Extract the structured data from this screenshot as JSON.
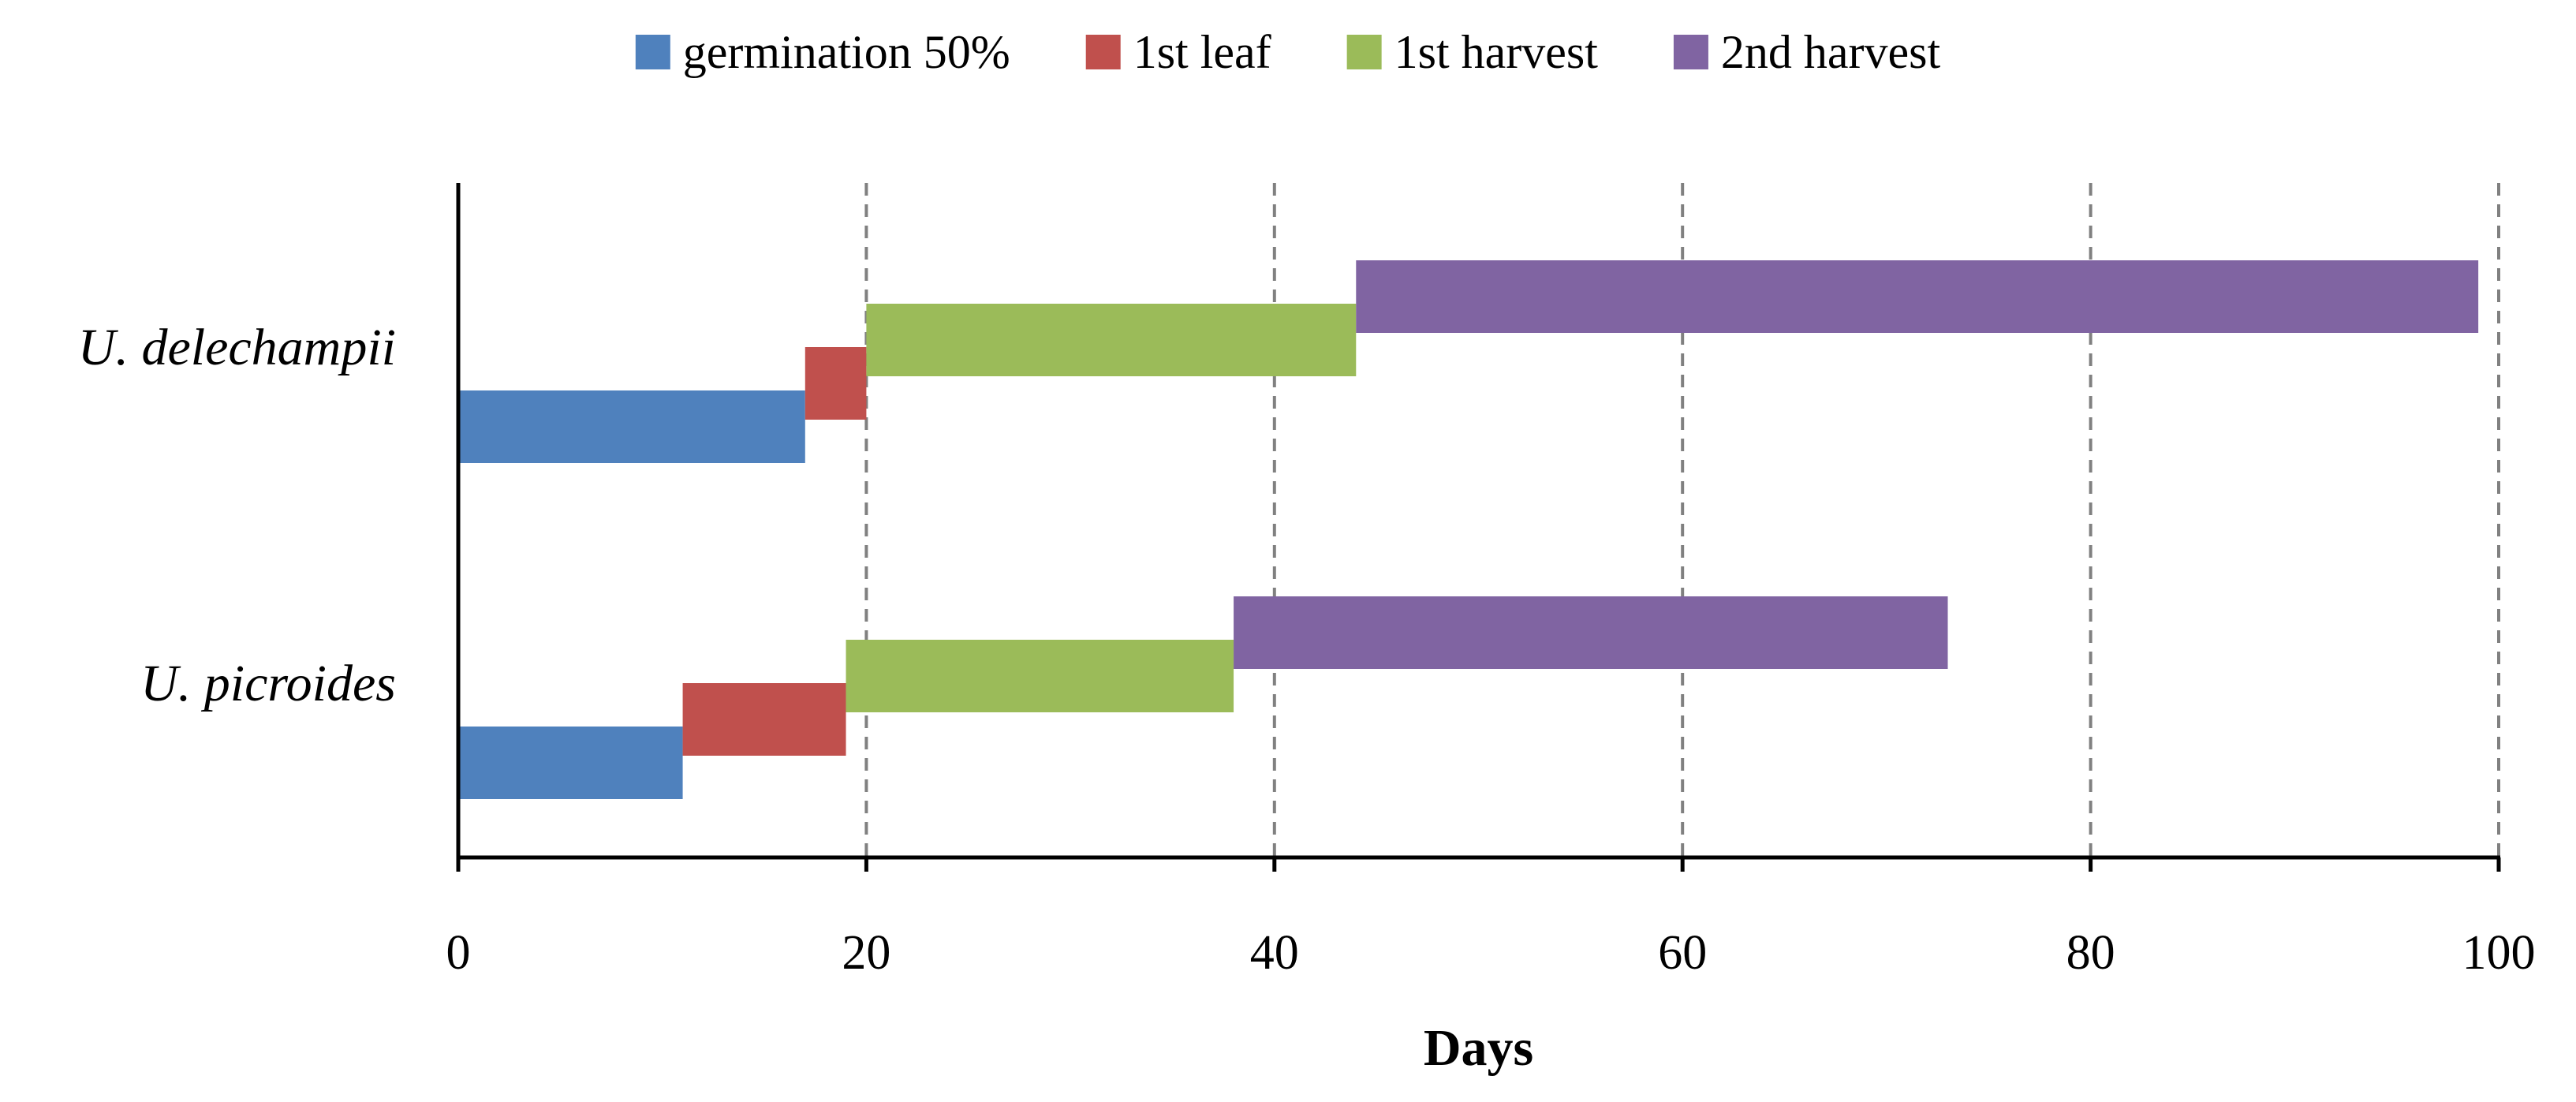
{
  "chart_data": {
    "type": "bar",
    "orientation": "horizontal",
    "stacking": "floating-stages",
    "title": "",
    "xlabel": "Days",
    "ylabel": "",
    "xlim": [
      0,
      100
    ],
    "xticks": [
      0,
      20,
      40,
      60,
      80,
      100
    ],
    "xtick_labels": [
      "0",
      "20",
      "40",
      "60",
      "80",
      "100"
    ],
    "grid": "vertical dashed at 20, 40, 60, 80, 100",
    "legend_position": "top-center",
    "categories": [
      "U. delechampii",
      "U. picroides"
    ],
    "series": [
      {
        "name": "germination 50%",
        "color": "#4f81bd",
        "ranges": [
          [
            0,
            17
          ],
          [
            0,
            11
          ]
        ]
      },
      {
        "name": "1st leaf",
        "color": "#c0504d",
        "ranges": [
          [
            17,
            20
          ],
          [
            11,
            19
          ]
        ]
      },
      {
        "name": "1st harvest",
        "color": "#9bbb59",
        "ranges": [
          [
            20,
            44
          ],
          [
            19,
            38
          ]
        ]
      },
      {
        "name": "2nd harvest",
        "color": "#8064a2",
        "ranges": [
          [
            44,
            99
          ],
          [
            38,
            73
          ]
        ]
      }
    ]
  }
}
